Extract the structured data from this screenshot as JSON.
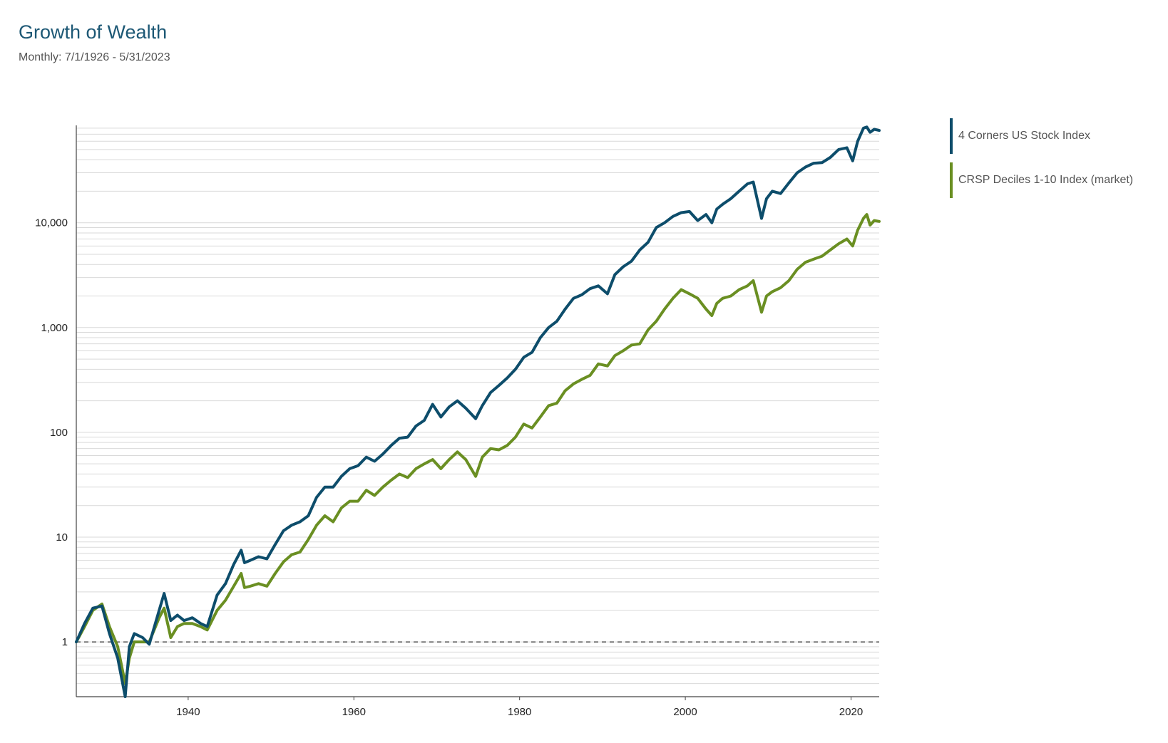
{
  "header": {
    "title": "Growth of Wealth",
    "subtitle": "Monthly: 7/1/1926 - 5/31/2023"
  },
  "colors": {
    "series_1": "#0d4d6b",
    "series_2": "#6a8f22",
    "grid": "#d9d9d9",
    "axis": "#444444",
    "baseline": "#333333"
  },
  "chart_data": {
    "type": "line",
    "title": "Growth of Wealth",
    "subtitle": "Monthly: 7/1/1926 - 5/31/2023",
    "xlabel": "",
    "ylabel": "",
    "y_scale": "log",
    "xlim": [
      1926.5,
      2023.4
    ],
    "ylim": [
      0.3,
      85000
    ],
    "x_ticks": [
      1940,
      1960,
      1980,
      2000,
      2020
    ],
    "x_tick_labels": [
      "1940",
      "1960",
      "1980",
      "2000",
      "2020"
    ],
    "y_ticks": [
      1,
      10,
      100,
      1000,
      10000
    ],
    "y_tick_labels": [
      "1",
      "10",
      "100",
      "1,000",
      "10,000"
    ],
    "baseline": 1,
    "grid": true,
    "legend_position": "right",
    "series": [
      {
        "name": "4 Corners US Stock Index",
        "x": [
          1926.5,
          1927.5,
          1928.5,
          1929.6,
          1930.5,
          1931.5,
          1932.4,
          1932.9,
          1933.5,
          1934.5,
          1935.3,
          1936.5,
          1937.1,
          1937.9,
          1938.7,
          1939.5,
          1940.5,
          1941.5,
          1942.3,
          1943.5,
          1944.5,
          1945.5,
          1946.4,
          1946.8,
          1947.5,
          1948.5,
          1949.5,
          1950.5,
          1951.5,
          1952.5,
          1953.5,
          1954.5,
          1955.5,
          1956.5,
          1957.5,
          1958.5,
          1959.5,
          1960.5,
          1961.5,
          1962.5,
          1963.5,
          1964.5,
          1965.5,
          1966.5,
          1967.5,
          1968.5,
          1969.5,
          1970.5,
          1971.5,
          1972.5,
          1973.5,
          1974.7,
          1975.5,
          1976.5,
          1977.5,
          1978.5,
          1979.5,
          1980.5,
          1981.5,
          1982.5,
          1983.5,
          1984.5,
          1985.5,
          1986.5,
          1987.5,
          1988.5,
          1989.5,
          1990.6,
          1991.5,
          1992.5,
          1993.5,
          1994.5,
          1995.5,
          1996.5,
          1997.5,
          1998.5,
          1999.5,
          2000.5,
          2001.5,
          2002.5,
          2003.2,
          2003.8,
          2004.5,
          2005.5,
          2006.5,
          2007.5,
          2008.2,
          2009.2,
          2009.8,
          2010.5,
          2011.5,
          2012.5,
          2013.5,
          2014.5,
          2015.5,
          2016.5,
          2017.5,
          2018.5,
          2019.5,
          2020.2,
          2020.8,
          2021.5,
          2021.9,
          2022.3,
          2022.8,
          2023.4
        ],
        "values": [
          1.0,
          1.5,
          2.1,
          2.2,
          1.2,
          0.7,
          0.3,
          0.9,
          1.2,
          1.1,
          0.95,
          2.0,
          2.9,
          1.6,
          1.8,
          1.6,
          1.7,
          1.5,
          1.4,
          2.8,
          3.6,
          5.5,
          7.5,
          5.7,
          6.0,
          6.5,
          6.2,
          8.5,
          11.5,
          13.0,
          14.0,
          16.0,
          24.0,
          30.0,
          30.0,
          38.0,
          45.0,
          48.0,
          58.0,
          53.0,
          62.0,
          75.0,
          88.0,
          90.0,
          115.0,
          130.0,
          185.0,
          140.0,
          175.0,
          200.0,
          170.0,
          135.0,
          180.0,
          240.0,
          280.0,
          330.0,
          400.0,
          520.0,
          580.0,
          800.0,
          1000.0,
          1150.0,
          1500.0,
          1900.0,
          2050.0,
          2350.0,
          2500.0,
          2100.0,
          3200.0,
          3800.0,
          4300.0,
          5500.0,
          6500.0,
          9000.0,
          10000.0,
          11500.0,
          12500.0,
          12800.0,
          10500.0,
          12000.0,
          10000.0,
          13500.0,
          15000.0,
          17000.0,
          20000.0,
          23500.0,
          24500.0,
          11000.0,
          17000.0,
          20000.0,
          19000.0,
          24000.0,
          30000.0,
          34000.0,
          37000.0,
          37500.0,
          42000.0,
          50000.0,
          52000.0,
          39000.0,
          60000.0,
          80000.0,
          82000.0,
          73000.0,
          78000.0,
          76000.0
        ]
      },
      {
        "name": "CRSP Deciles 1-10 Index (market)",
        "x": [
          1926.5,
          1927.5,
          1928.5,
          1929.6,
          1930.5,
          1931.5,
          1932.4,
          1932.9,
          1933.5,
          1934.5,
          1935.3,
          1936.5,
          1937.1,
          1937.9,
          1938.7,
          1939.5,
          1940.5,
          1941.5,
          1942.3,
          1943.5,
          1944.5,
          1945.5,
          1946.4,
          1946.8,
          1947.5,
          1948.5,
          1949.5,
          1950.5,
          1951.5,
          1952.5,
          1953.5,
          1954.5,
          1955.5,
          1956.5,
          1957.5,
          1958.5,
          1959.5,
          1960.5,
          1961.5,
          1962.5,
          1963.5,
          1964.5,
          1965.5,
          1966.5,
          1967.5,
          1968.5,
          1969.5,
          1970.5,
          1971.5,
          1972.5,
          1973.5,
          1974.7,
          1975.5,
          1976.5,
          1977.5,
          1978.5,
          1979.5,
          1980.5,
          1981.5,
          1982.5,
          1983.5,
          1984.5,
          1985.5,
          1986.5,
          1987.5,
          1988.5,
          1989.5,
          1990.6,
          1991.5,
          1992.5,
          1993.5,
          1994.5,
          1995.5,
          1996.5,
          1997.5,
          1998.5,
          1999.5,
          2000.5,
          2001.5,
          2002.5,
          2003.2,
          2003.8,
          2004.5,
          2005.5,
          2006.5,
          2007.5,
          2008.2,
          2009.2,
          2009.8,
          2010.5,
          2011.5,
          2012.5,
          2013.5,
          2014.5,
          2015.5,
          2016.5,
          2017.5,
          2018.5,
          2019.5,
          2020.2,
          2020.8,
          2021.5,
          2021.9,
          2022.3,
          2022.8,
          2023.4
        ],
        "values": [
          1.0,
          1.4,
          2.0,
          2.3,
          1.4,
          0.9,
          0.4,
          0.7,
          1.0,
          1.0,
          1.0,
          1.7,
          2.1,
          1.1,
          1.4,
          1.5,
          1.5,
          1.4,
          1.3,
          2.0,
          2.5,
          3.4,
          4.5,
          3.3,
          3.4,
          3.6,
          3.4,
          4.5,
          5.8,
          6.8,
          7.2,
          9.5,
          13.0,
          16.0,
          14.0,
          19.0,
          22.0,
          22.0,
          28.0,
          25.0,
          30.0,
          35.0,
          40.0,
          37.0,
          45.0,
          50.0,
          55.0,
          45.0,
          55.0,
          65.0,
          55.0,
          38.0,
          58.0,
          70.0,
          68.0,
          75.0,
          90.0,
          120.0,
          110.0,
          140.0,
          180.0,
          190.0,
          250.0,
          290.0,
          320.0,
          350.0,
          450.0,
          430.0,
          540.0,
          600.0,
          680.0,
          700.0,
          950.0,
          1150.0,
          1500.0,
          1900.0,
          2300.0,
          2100.0,
          1900.0,
          1500.0,
          1300.0,
          1700.0,
          1900.0,
          2000.0,
          2300.0,
          2500.0,
          2800.0,
          1400.0,
          2000.0,
          2200.0,
          2400.0,
          2800.0,
          3600.0,
          4200.0,
          4500.0,
          4800.0,
          5500.0,
          6300.0,
          7000.0,
          6000.0,
          8500.0,
          11000.0,
          12000.0,
          9500.0,
          10500.0,
          10300.0
        ]
      }
    ]
  }
}
